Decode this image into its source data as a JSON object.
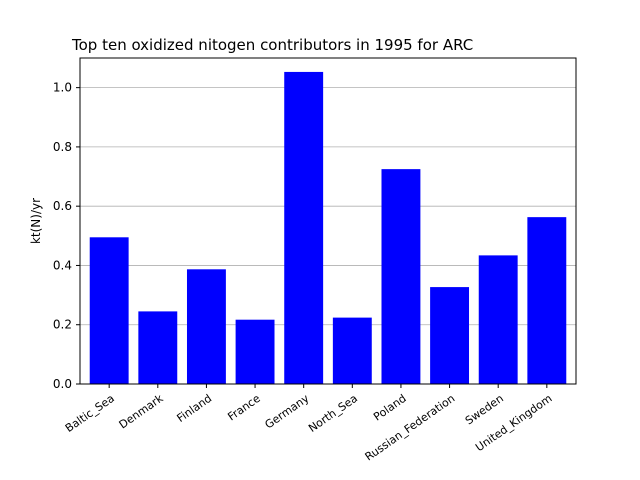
{
  "chart_data": {
    "type": "bar",
    "title": "Top ten oxidized nitogen contributors in 1995 for ARC",
    "xlabel": "",
    "ylabel": "kt(N)/yr",
    "ylim": [
      0,
      1.1
    ],
    "yticks": [
      0.0,
      0.2,
      0.4,
      0.6,
      0.8,
      1.0
    ],
    "ytick_labels": [
      "0.0",
      "0.2",
      "0.4",
      "0.6",
      "0.8",
      "1.0"
    ],
    "grid": "y-major",
    "bar_color": "#0000ff",
    "categories": [
      "Baltic_Sea",
      "Denmark",
      "Finland",
      "France",
      "Germany",
      "North_Sea",
      "Poland",
      "Russian_Federation",
      "Sweden",
      "United_Kingdom"
    ],
    "values": [
      0.495,
      0.245,
      0.387,
      0.217,
      1.053,
      0.224,
      0.725,
      0.327,
      0.434,
      0.563
    ]
  }
}
